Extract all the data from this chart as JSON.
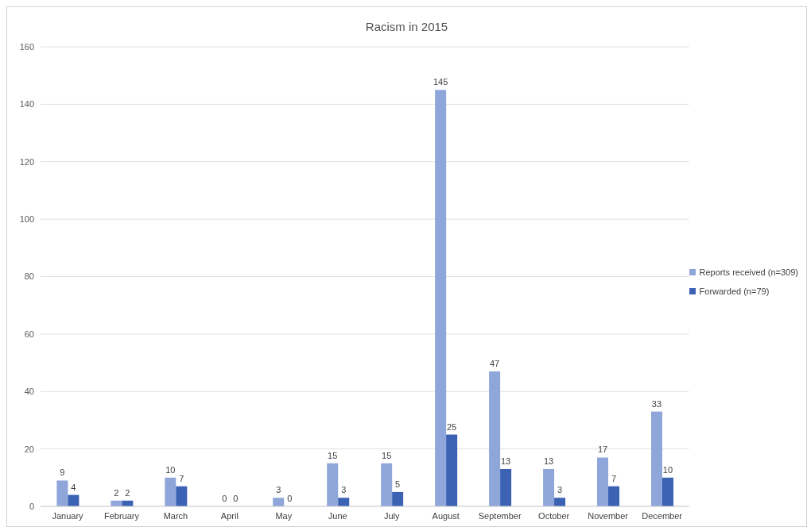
{
  "chart_data": {
    "type": "bar",
    "title": "Racism in 2015",
    "categories": [
      "January",
      "February",
      "March",
      "April",
      "May",
      "June",
      "July",
      "August",
      "September",
      "October",
      "November",
      "December"
    ],
    "series": [
      {
        "name": "Reports received (n=309)",
        "color": "#8fa6da",
        "values": [
          9,
          2,
          10,
          0,
          3,
          15,
          15,
          145,
          47,
          13,
          17,
          33
        ]
      },
      {
        "name": "Forwarded (n=79)",
        "color": "#3c62b4",
        "values": [
          4,
          2,
          7,
          0,
          0,
          3,
          5,
          25,
          13,
          3,
          7,
          10
        ]
      }
    ],
    "ylim": [
      0,
      160
    ],
    "yticks": [
      0,
      20,
      40,
      60,
      80,
      100,
      120,
      140,
      160
    ],
    "grid": "y",
    "legend": "right",
    "data_labels": true
  }
}
